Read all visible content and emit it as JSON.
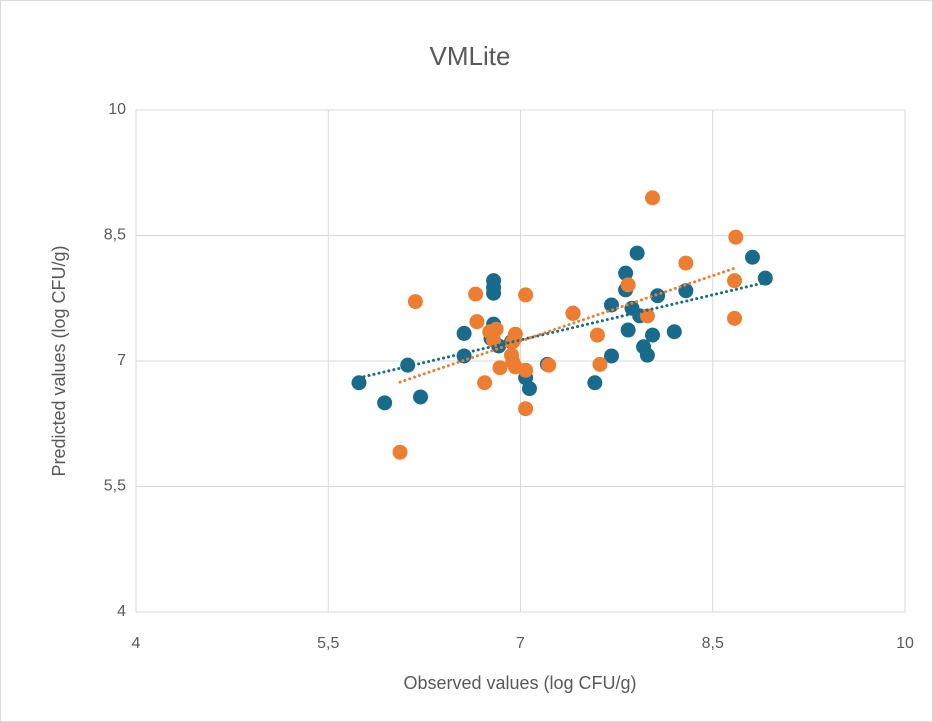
{
  "chart_data": {
    "type": "scatter",
    "title": "VMLite",
    "xlabel": "Observed values (log CFU/g)",
    "ylabel": "Predicted values (log CFU/g)",
    "xlim": [
      4,
      10
    ],
    "ylim": [
      4,
      10
    ],
    "xticks": [
      4,
      {
        "value": 5.5,
        "label": "5,5"
      },
      7,
      {
        "value": 8.5,
        "label": "8,5"
      },
      10
    ],
    "yticks": [
      4,
      {
        "value": 5.5,
        "label": "5,5"
      },
      7,
      {
        "value": 8.5,
        "label": "8,5"
      },
      10
    ],
    "grid": true,
    "trendline": "linear",
    "series": [
      {
        "color": "#196b8c",
        "x": [
          5.74,
          5.94,
          6.12,
          6.22,
          6.56,
          6.56,
          6.79,
          6.79,
          6.79,
          6.79,
          6.77,
          6.83,
          7.04,
          7.07,
          7.41,
          7.58,
          7.71,
          7.71,
          7.82,
          7.82,
          7.84,
          7.87,
          7.91,
          7.93,
          7.96,
          7.99,
          8.03,
          8.07,
          8.2,
          8.29,
          8.81,
          8.91,
          6.93,
          7.21
        ],
        "values": [
          6.74,
          6.5,
          6.95,
          6.57,
          7.33,
          7.06,
          7.96,
          7.88,
          7.81,
          7.44,
          7.27,
          7.18,
          6.8,
          6.67,
          7.57,
          6.74,
          7.06,
          7.67,
          8.05,
          7.85,
          7.37,
          7.63,
          8.29,
          7.54,
          7.17,
          7.07,
          7.31,
          7.78,
          7.35,
          7.84,
          8.24,
          7.99,
          7.23,
          6.96
        ]
      },
      {
        "color": "#ed7d31",
        "x": [
          6.06,
          6.18,
          6.65,
          6.66,
          6.72,
          6.76,
          6.81,
          6.79,
          6.84,
          6.93,
          6.94,
          6.96,
          6.96,
          7.04,
          7.04,
          7.04,
          7.22,
          7.41,
          7.6,
          7.62,
          7.84,
          7.99,
          8.03,
          8.29,
          8.68,
          8.67,
          8.67,
          6.94
        ],
        "values": [
          5.91,
          7.71,
          7.8,
          7.47,
          6.74,
          7.35,
          7.38,
          7.25,
          6.92,
          7.07,
          7.23,
          7.32,
          6.93,
          6.89,
          6.43,
          7.79,
          6.95,
          7.57,
          7.31,
          6.96,
          7.91,
          7.54,
          8.95,
          8.17,
          8.48,
          7.96,
          7.51,
          6.99
        ]
      }
    ]
  }
}
